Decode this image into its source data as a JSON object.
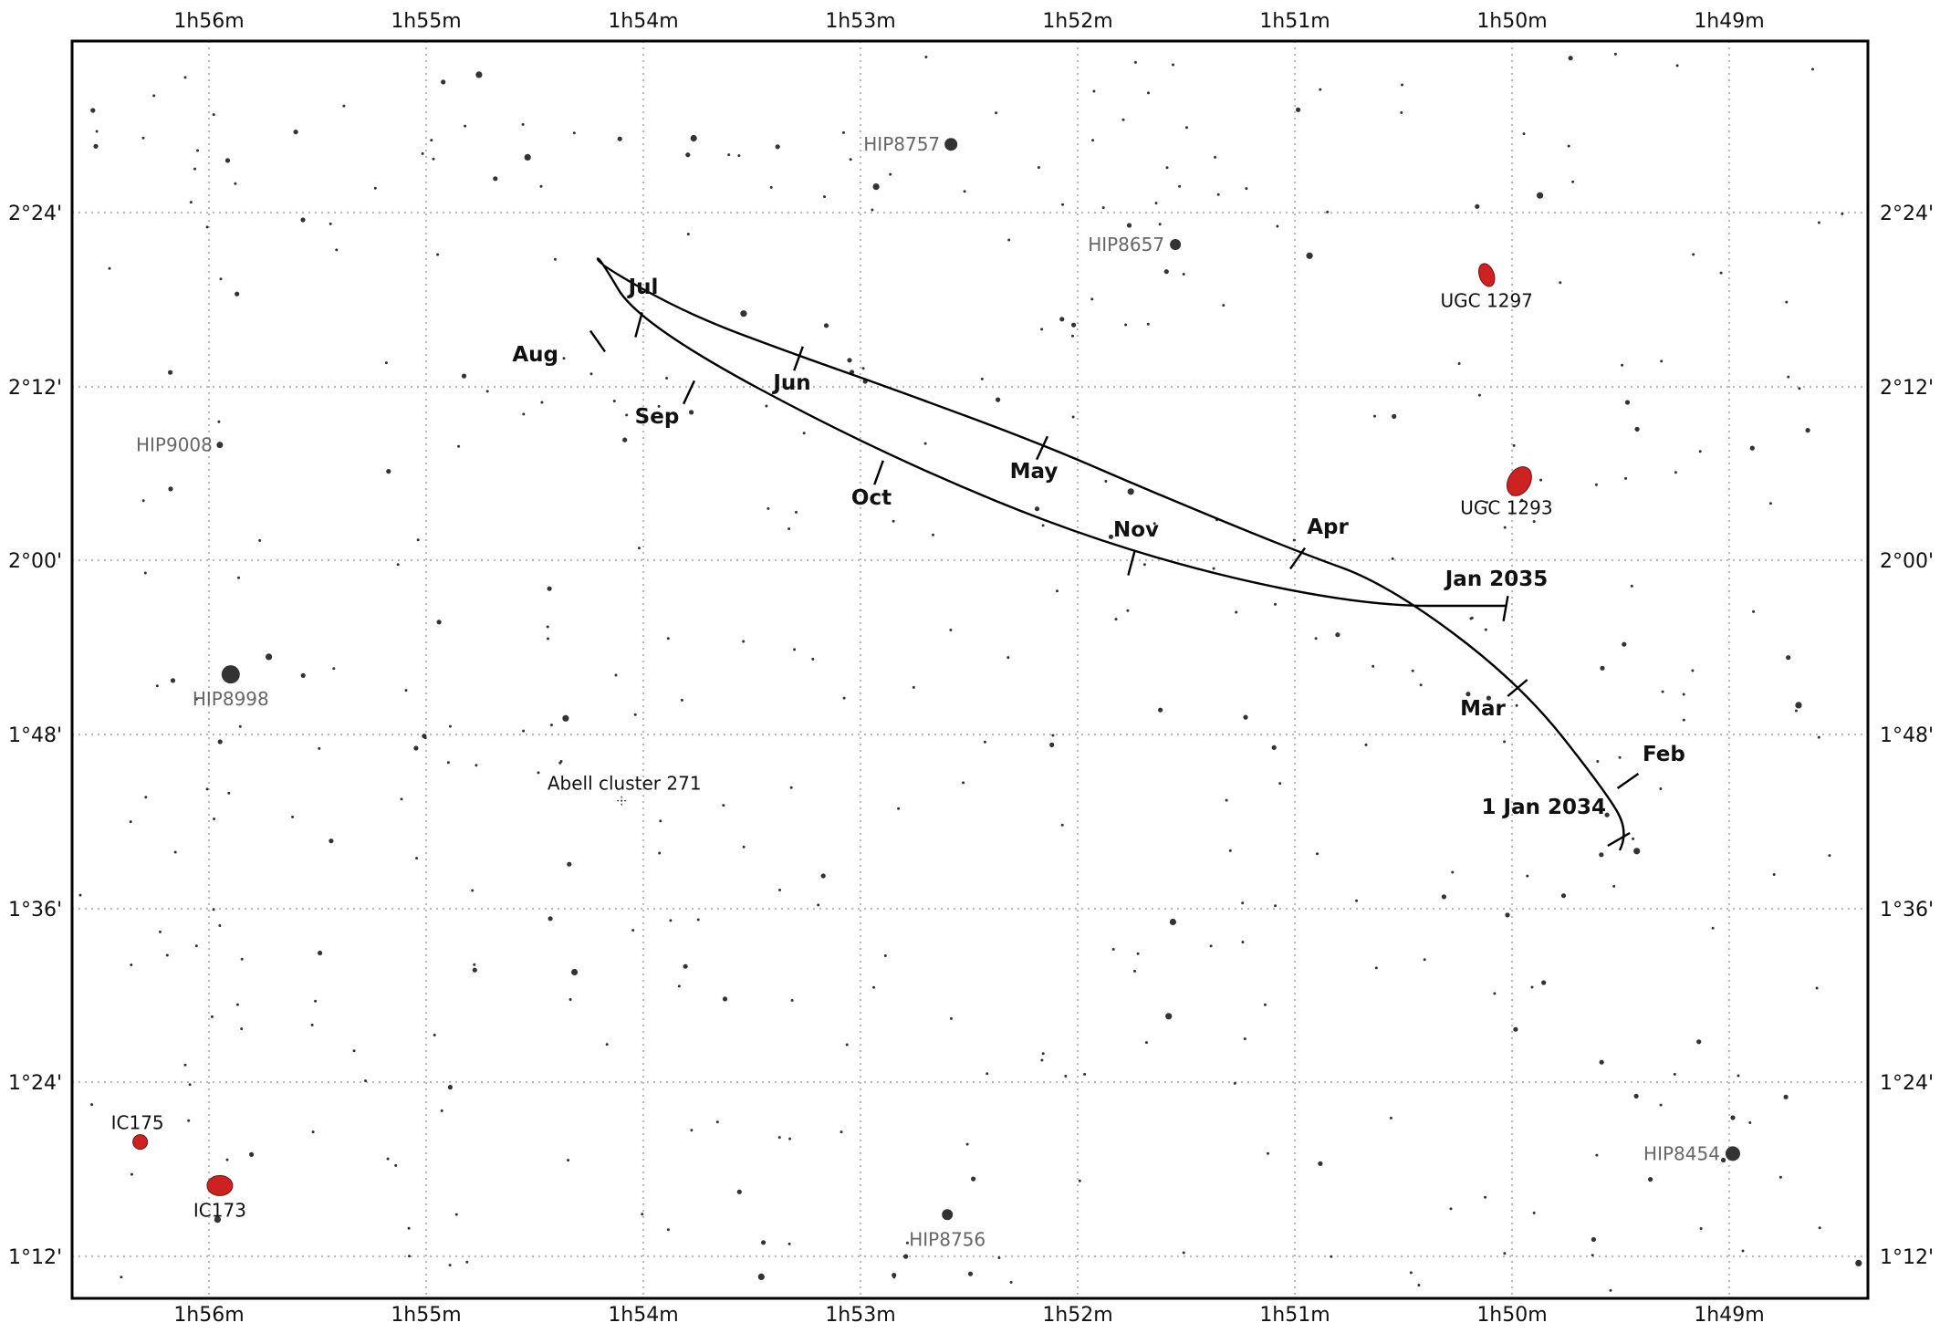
{
  "chart_data": {
    "type": "scatter",
    "title": "",
    "x_axis": {
      "ticks": [
        "1h56m",
        "1h55m",
        "1h54m",
        "1h53m",
        "1h52m",
        "1h51m",
        "1h50m",
        "1h49m"
      ],
      "direction": "right-ascension decreasing to the right"
    },
    "y_axis": {
      "ticks": [
        "2°24'",
        "2°12'",
        "2°00'",
        "1°48'",
        "1°36'",
        "1°24'",
        "1°12'"
      ]
    },
    "grid": "dotted",
    "named_stars": [
      {
        "label": "HIP8757",
        "ra": "1h52m35s",
        "dec": "2°28.7'",
        "mag_size": 7
      },
      {
        "label": "HIP8657",
        "ra": "1h51m33s",
        "dec": "2°21.8'",
        "mag_size": 6
      },
      {
        "label": "HIP9008",
        "ra": "1h55m57s",
        "dec": "2°08.0'",
        "mag_size": 3.5
      },
      {
        "label": "HIP8998",
        "ra": "1h55m54s",
        "dec": "1°52.2'",
        "mag_size": 10
      },
      {
        "label": "HIP8756",
        "ra": "1h52m36s",
        "dec": "1°15.0'",
        "mag_size": 6
      },
      {
        "label": "HIP8454",
        "ra": "1h48m59s",
        "dec": "1°19.2'",
        "mag_size": 8
      }
    ],
    "deep_sky_objects": [
      {
        "label": "UGC 1297",
        "ra": "1h50m07s",
        "dec": "2°19.7'",
        "type": "galaxy"
      },
      {
        "label": "UGC 1293",
        "ra": "1h49m58s",
        "dec": "2°05.5'",
        "type": "galaxy"
      },
      {
        "label": "IC175",
        "ra": "1h56m19s",
        "dec": "1°20.0'",
        "type": "galaxy"
      },
      {
        "label": "IC173",
        "ra": "1h55m57s",
        "dec": "1°17.0'",
        "type": "galaxy"
      },
      {
        "label": "Abell cluster 271",
        "ra": "1h54m06s",
        "dec": "1°43.5'",
        "type": "cluster"
      }
    ],
    "track_labels": [
      "1 Jan 2034",
      "Feb",
      "Mar",
      "Apr",
      "May",
      "Jun",
      "Jul",
      "Aug",
      "Sep",
      "Oct",
      "Nov",
      "Jan 2035"
    ],
    "colors": {
      "galaxy": "#cc2222",
      "star": "#333333",
      "track": "#000000",
      "grid": "#bbbbbb"
    }
  }
}
